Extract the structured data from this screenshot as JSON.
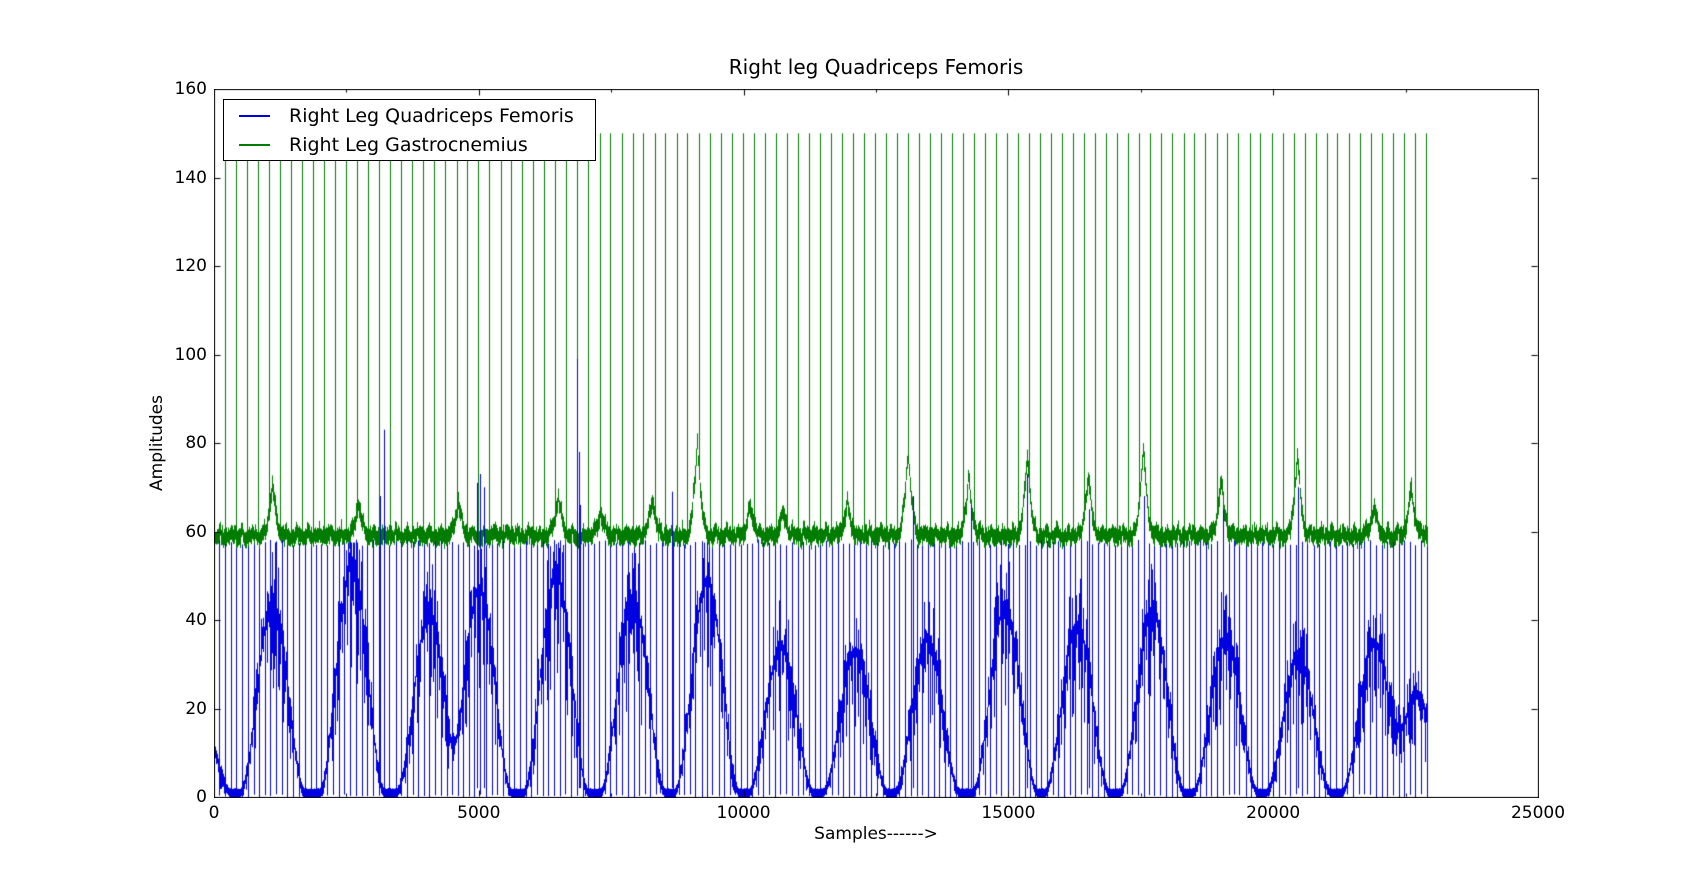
{
  "chart_data": {
    "type": "line",
    "title": "Right leg Quadriceps Femoris",
    "xlabel": "Samples------>",
    "ylabel": "Amplitudes",
    "xlim": [
      0,
      25000
    ],
    "ylim": [
      0,
      160
    ],
    "xticks": [
      0,
      5000,
      10000,
      15000,
      20000,
      25000
    ],
    "xtick_labels": [
      "0",
      "5000",
      "10000",
      "15000",
      "20000",
      "25000"
    ],
    "xminor_ticks": [
      2500,
      7500,
      12500,
      17500,
      22500
    ],
    "yticks": [
      0,
      20,
      40,
      60,
      80,
      100,
      120,
      140,
      160
    ],
    "ytick_labels": [
      "0",
      "20",
      "40",
      "60",
      "80",
      "100",
      "120",
      "140",
      "160"
    ],
    "grid": false,
    "legend_position": "upper-left",
    "sample_count": 22900,
    "noise_seed": 7,
    "series": [
      {
        "name": "Right Leg Quadriceps Femoris",
        "color": "#0000e0",
        "kind": "spike-train-with-burst-envelope",
        "spike_ceiling": 57.5,
        "spike_interval": 107,
        "trough_level": 0.8,
        "burst_halfwidth": 620,
        "bursts": [
          [
            -300,
            20
          ],
          [
            1100,
            43
          ],
          [
            2600,
            52
          ],
          [
            4050,
            40
          ],
          [
            5000,
            46
          ],
          [
            6450,
            50
          ],
          [
            7900,
            44
          ],
          [
            9300,
            48
          ],
          [
            10700,
            33
          ],
          [
            12100,
            32
          ],
          [
            13460,
            35
          ],
          [
            14930,
            42
          ],
          [
            16290,
            38
          ],
          [
            17710,
            41
          ],
          [
            19090,
            35
          ],
          [
            20470,
            31
          ],
          [
            21900,
            34
          ],
          [
            22700,
            22
          ]
        ],
        "outlier_spikes": [
          [
            3140,
            68
          ],
          [
            3210,
            83
          ],
          [
            4965,
            71
          ],
          [
            5030,
            73
          ],
          [
            5090,
            70
          ],
          [
            6850,
            99
          ],
          [
            6890,
            78
          ],
          [
            6920,
            66
          ],
          [
            8650,
            69
          ],
          [
            13200,
            68
          ],
          [
            14290,
            66
          ],
          [
            15360,
            73
          ],
          [
            16520,
            65
          ],
          [
            17560,
            68
          ],
          [
            19060,
            65
          ],
          [
            20470,
            70
          ]
        ]
      },
      {
        "name": "Right Leg Gastrocnemius",
        "color": "#007d00",
        "kind": "spike-train-above-baseline",
        "baseline": 59.4,
        "spike_top": 150,
        "spike_interval": 208,
        "bump_halfwidth": 210,
        "comb_ripple": 1.3,
        "bumps": [
          [
            1095,
            71
          ],
          [
            2720,
            67
          ],
          [
            4610,
            67
          ],
          [
            6495,
            68
          ],
          [
            7290,
            65
          ],
          [
            8270,
            68
          ],
          [
            9120,
            81
          ],
          [
            10120,
            66
          ],
          [
            10740,
            65
          ],
          [
            11950,
            67
          ],
          [
            13100,
            79
          ],
          [
            14240,
            72
          ],
          [
            15350,
            78
          ],
          [
            16500,
            73
          ],
          [
            17540,
            80
          ],
          [
            19010,
            72
          ],
          [
            20450,
            78
          ],
          [
            21900,
            66
          ],
          [
            22600,
            70
          ]
        ]
      }
    ]
  }
}
